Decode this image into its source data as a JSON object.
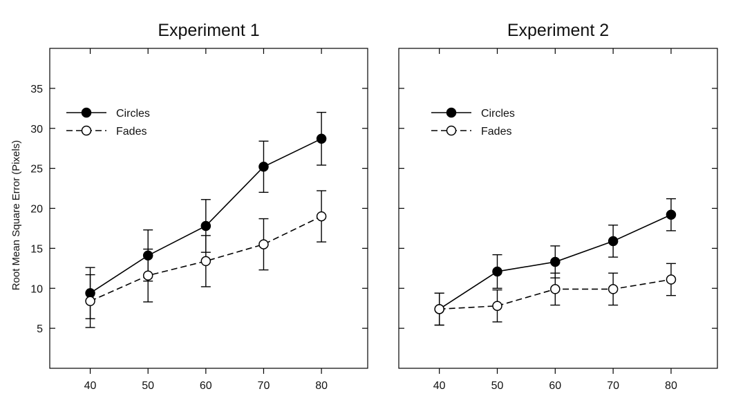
{
  "chart_data": [
    {
      "type": "line",
      "title": "Experiment 1",
      "ylabel": "Root Mean Square Error (Pixels)",
      "xlabel": "",
      "x": [
        40,
        50,
        60,
        70,
        80
      ],
      "xticks": [
        "40",
        "50",
        "60",
        "70",
        "80"
      ],
      "yticks": [
        "5",
        "10",
        "15",
        "20",
        "25",
        "30",
        "35"
      ],
      "xlim": [
        33,
        88
      ],
      "ylim": [
        0,
        40
      ],
      "grid": false,
      "legend_position": "upper-left",
      "series": [
        {
          "name": "Circles",
          "marker": "filled-circle",
          "line": "solid",
          "color": "#000000",
          "values": [
            9.4,
            14.1,
            17.8,
            25.2,
            28.7
          ],
          "error": [
            3.2,
            3.2,
            3.3,
            3.2,
            3.3
          ]
        },
        {
          "name": "Fades",
          "marker": "open-circle",
          "line": "dashed",
          "color": "#000000",
          "values": [
            8.4,
            11.6,
            13.4,
            15.5,
            19.0
          ],
          "error": [
            3.3,
            3.3,
            3.2,
            3.2,
            3.2
          ]
        }
      ]
    },
    {
      "type": "line",
      "title": "Experiment 2",
      "ylabel": "",
      "xlabel": "",
      "x": [
        40,
        50,
        60,
        70,
        80
      ],
      "xticks": [
        "40",
        "50",
        "60",
        "70",
        "80"
      ],
      "yticks": [],
      "xlim": [
        33,
        88
      ],
      "ylim": [
        0,
        40
      ],
      "grid": false,
      "legend_position": "upper-left",
      "series": [
        {
          "name": "Circles",
          "marker": "filled-circle",
          "line": "solid",
          "color": "#000000",
          "values": [
            7.4,
            12.1,
            13.3,
            15.9,
            19.2
          ],
          "error": [
            2.0,
            2.1,
            2.0,
            2.0,
            2.0
          ]
        },
        {
          "name": "Fades",
          "marker": "open-circle",
          "line": "dashed",
          "color": "#000000",
          "values": [
            7.4,
            7.8,
            9.9,
            9.9,
            11.1
          ],
          "error": [
            2.0,
            2.0,
            2.0,
            2.0,
            2.0
          ]
        }
      ]
    }
  ]
}
